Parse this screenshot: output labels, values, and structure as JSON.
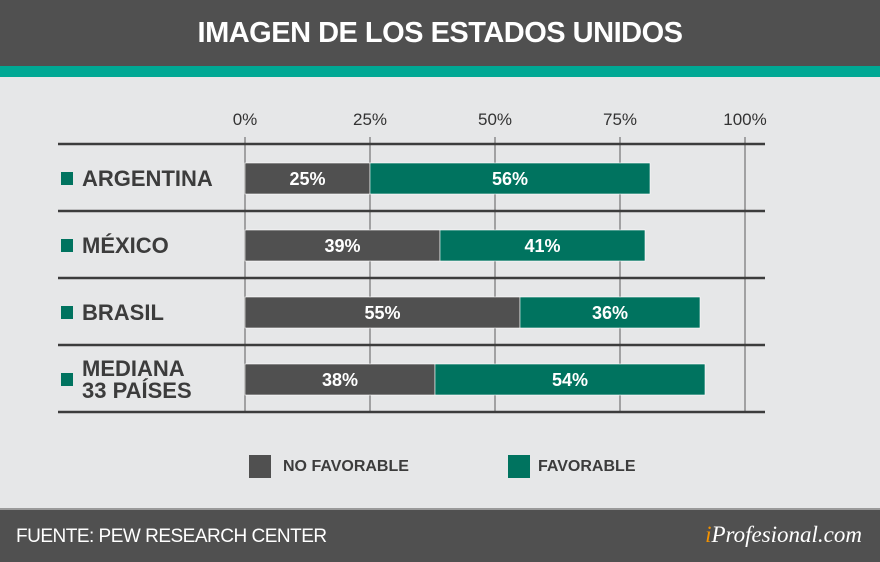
{
  "title": "IMAGEN DE LOS ESTADOS UNIDOS",
  "source": "FUENTE: PEW RESEARCH CENTER",
  "logo": {
    "prefix": "i",
    "rest": "Profesional.com"
  },
  "colors": {
    "no_favorable": "#505050",
    "favorable": "#00735f",
    "accent": "#00a894"
  },
  "chart_data": {
    "type": "bar",
    "orientation": "horizontal",
    "stacked": true,
    "categories": [
      [
        "ARGENTINA"
      ],
      [
        "MÉXICO"
      ],
      [
        "BRASIL"
      ],
      [
        "MEDIANA",
        "33 PAÍSES"
      ]
    ],
    "series": [
      {
        "name": "NO FAVORABLE",
        "values": [
          25,
          39,
          55,
          38
        ],
        "labels": [
          "25%",
          "39%",
          "55%",
          "38%"
        ]
      },
      {
        "name": "FAVORABLE",
        "values": [
          56,
          41,
          36,
          54
        ],
        "labels": [
          "56%",
          "41%",
          "36%",
          "54%"
        ]
      }
    ],
    "xlim": [
      0,
      100
    ],
    "ticks": [
      0,
      25,
      50,
      75,
      100
    ],
    "tick_labels": [
      "0%",
      "25%",
      "50%",
      "75%",
      "100%"
    ],
    "grid": true,
    "legend": "bottom"
  }
}
